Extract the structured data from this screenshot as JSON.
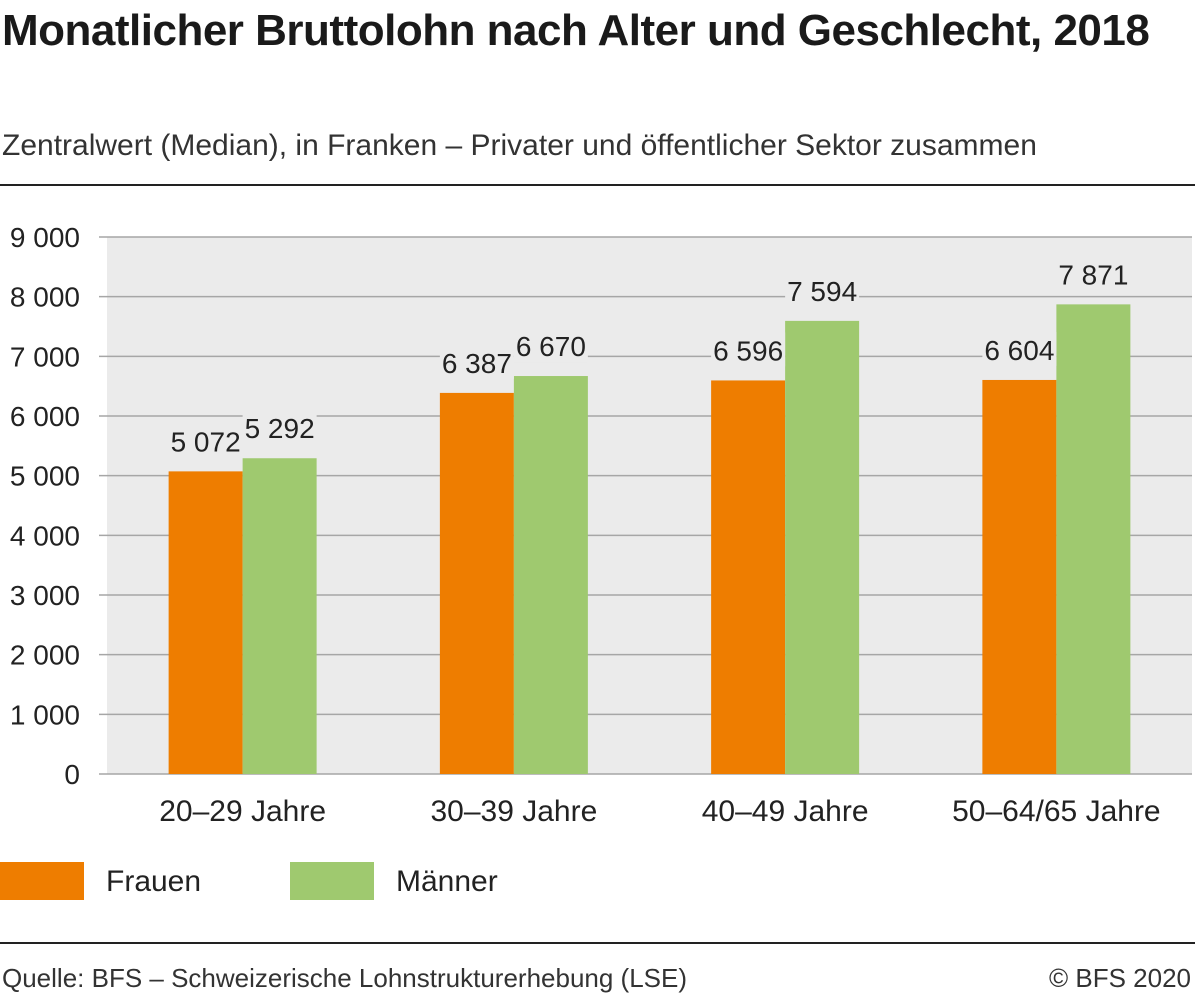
{
  "title": "Monatlicher Bruttolohn nach Alter und Geschlecht, 2018",
  "subtitle": "Zentralwert (Median), in Franken – Privater und öffentlicher Sektor zusammen",
  "source": "Quelle: BFS – Schweizerische Lohnstrukturerhebung (LSE)",
  "copyright": "© BFS 2020",
  "colors": {
    "frauen": "#ee7d00",
    "maenner": "#9fc96f",
    "plot_background": "#ebebeb",
    "gridline": "#a6a6a6"
  },
  "chart_data": {
    "type": "bar",
    "categories": [
      "20–29 Jahre",
      "30–39 Jahre",
      "40–49 Jahre",
      "50–64/65 Jahre"
    ],
    "series": [
      {
        "name": "Frauen",
        "values": [
          5072,
          6387,
          6596,
          6604
        ],
        "labels": [
          "5 072",
          "6 387",
          "6 596",
          "6 604"
        ]
      },
      {
        "name": "Männer",
        "values": [
          5292,
          6670,
          7594,
          7871
        ],
        "labels": [
          "5 292",
          "6 670",
          "7 594",
          "7 871"
        ]
      }
    ],
    "yticks": [
      0,
      1000,
      2000,
      3000,
      4000,
      5000,
      6000,
      7000,
      8000,
      9000
    ],
    "ytick_labels": [
      "0",
      "1 000",
      "2 000",
      "3 000",
      "4 000",
      "5 000",
      "6 000",
      "7 000",
      "8 000",
      "9 000"
    ],
    "ylim": [
      0,
      9000
    ],
    "grid": true,
    "legend_position": "bottom-left"
  }
}
